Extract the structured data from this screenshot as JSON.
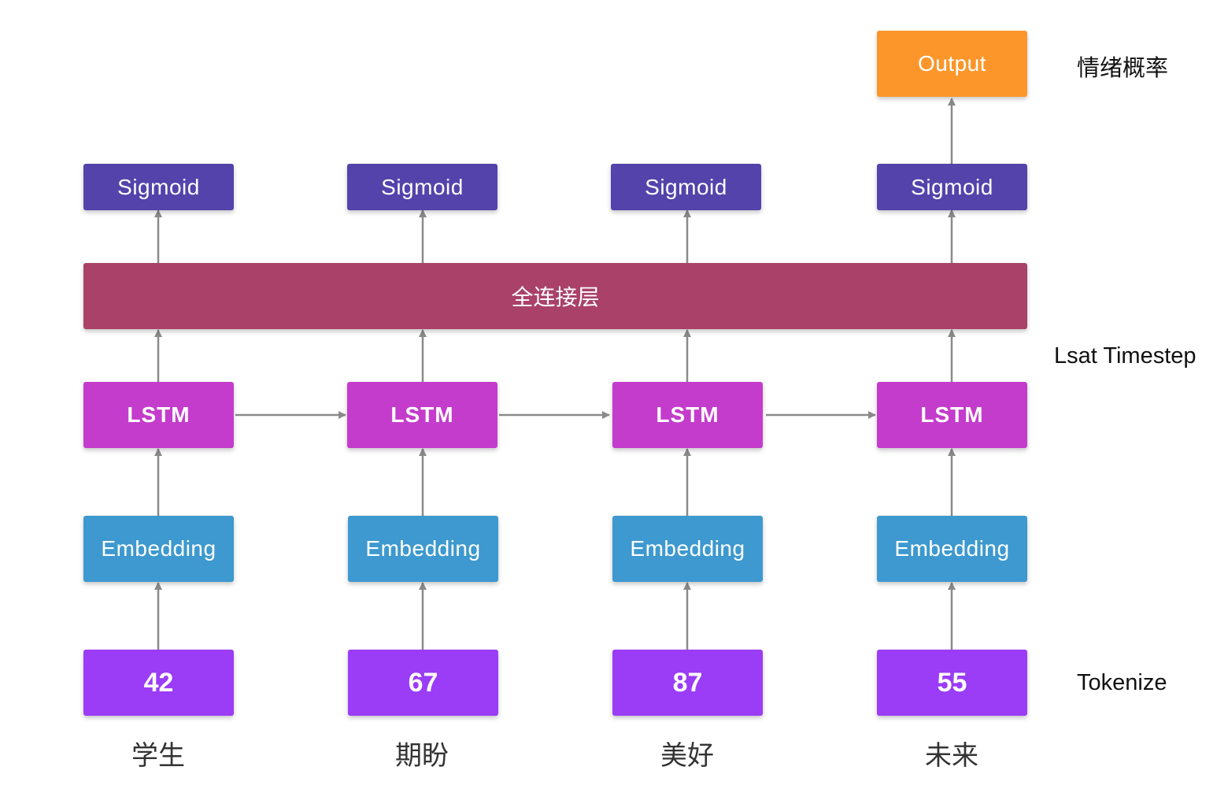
{
  "columns": [
    {
      "word": "学生",
      "token": "42",
      "embedding": "Embedding",
      "lstm": "LSTM",
      "sigmoid": "Sigmoid"
    },
    {
      "word": "期盼",
      "token": "67",
      "embedding": "Embedding",
      "lstm": "LSTM",
      "sigmoid": "Sigmoid"
    },
    {
      "word": "美好",
      "token": "87",
      "embedding": "Embedding",
      "lstm": "LSTM",
      "sigmoid": "Sigmoid"
    },
    {
      "word": "未来",
      "token": "55",
      "embedding": "Embedding",
      "lstm": "LSTM",
      "sigmoid": "Sigmoid"
    }
  ],
  "fc_layer": "全连接层",
  "output": "Output",
  "side_labels": {
    "output": "情绪概率",
    "last_timestep": "Lsat Timestep",
    "tokenize": "Tokenize"
  },
  "colors": {
    "token": "#9b3cf6",
    "embedding": "#3d99cf",
    "lstm": "#c43ccc",
    "fc": "#a94169",
    "sigmoid": "#5343ab",
    "output": "#fc962b",
    "arrow": "#8a8a8a"
  }
}
